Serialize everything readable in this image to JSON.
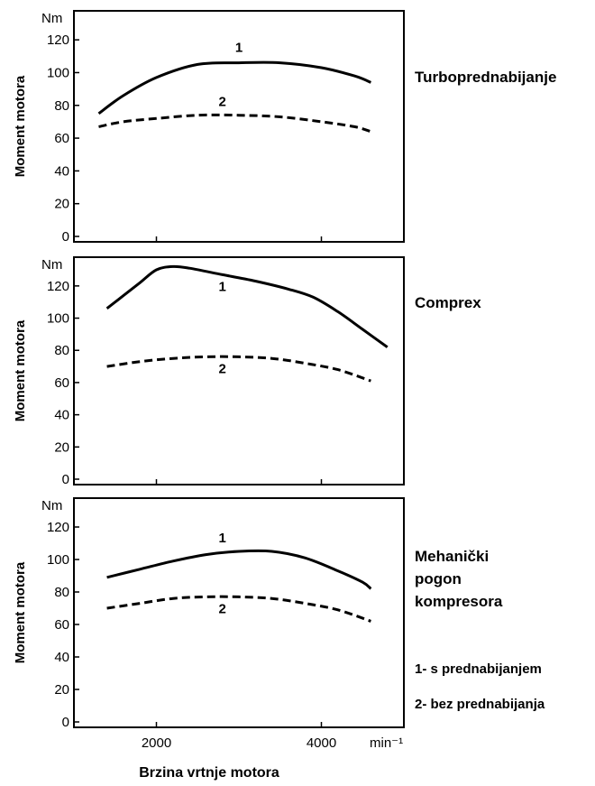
{
  "chart_data": [
    {
      "type": "line",
      "title": "Turboprednabijanje",
      "ylabel": "Moment motora",
      "y_unit": "Nm",
      "ylim": [
        0,
        130
      ],
      "yticks": [
        0,
        20,
        40,
        60,
        80,
        100,
        120
      ],
      "xlim": [
        1000,
        5000
      ],
      "xticks": [
        2000,
        4000
      ],
      "grid": false,
      "series": [
        {
          "name": "1",
          "style": "solid",
          "x": [
            1300,
            1600,
            2000,
            2500,
            3000,
            3500,
            4000,
            4400,
            4600
          ],
          "y": [
            75,
            86,
            97,
            105,
            106,
            106,
            103,
            98,
            94
          ]
        },
        {
          "name": "2",
          "style": "dashed",
          "x": [
            1300,
            1600,
            2000,
            2500,
            3000,
            3500,
            4000,
            4400,
            4600
          ],
          "y": [
            67,
            70,
            72,
            74,
            74,
            73,
            70,
            67,
            64
          ]
        }
      ]
    },
    {
      "type": "line",
      "title": "Comprex",
      "ylabel": "Moment motora",
      "y_unit": "Nm",
      "ylim": [
        0,
        130
      ],
      "yticks": [
        0,
        20,
        40,
        60,
        80,
        100,
        120
      ],
      "xlim": [
        1000,
        5000
      ],
      "xticks": [
        2000,
        4000
      ],
      "grid": false,
      "series": [
        {
          "name": "1",
          "style": "solid",
          "x": [
            1400,
            1600,
            1800,
            2000,
            2200,
            2400,
            2800,
            3200,
            3600,
            3900,
            4200,
            4500,
            4800
          ],
          "y": [
            106,
            114,
            122,
            130,
            132,
            131,
            127,
            123,
            118,
            113,
            104,
            93,
            82
          ]
        },
        {
          "name": "2",
          "style": "dashed",
          "x": [
            1400,
            1800,
            2200,
            2600,
            3000,
            3400,
            3800,
            4200,
            4600
          ],
          "y": [
            70,
            73,
            75,
            76,
            76,
            75,
            72,
            68,
            61
          ]
        }
      ]
    },
    {
      "type": "line",
      "title": "Mehanički\npogon\nkompresora",
      "ylabel": "Moment motora",
      "y_unit": "Nm",
      "ylim": [
        0,
        130
      ],
      "yticks": [
        0,
        20,
        40,
        60,
        80,
        100,
        120
      ],
      "xlim": [
        1000,
        5000
      ],
      "xticks": [
        2000,
        4000
      ],
      "xlabel": "Brzina vrtnje motora",
      "x_unit": "min⁻¹",
      "grid": false,
      "series": [
        {
          "name": "1",
          "style": "solid",
          "x": [
            1400,
            1800,
            2200,
            2600,
            3000,
            3400,
            3800,
            4200,
            4500,
            4600
          ],
          "y": [
            89,
            94,
            99,
            103,
            105,
            105,
            101,
            93,
            86,
            82
          ]
        },
        {
          "name": "2",
          "style": "dashed",
          "x": [
            1400,
            1800,
            2200,
            2600,
            3000,
            3400,
            3800,
            4200,
            4600
          ],
          "y": [
            70,
            73,
            76,
            77,
            77,
            76,
            73,
            69,
            62
          ]
        }
      ]
    }
  ],
  "legend": {
    "items": [
      "1- s prednabijanjem",
      "2- bez prednabijanja"
    ]
  }
}
